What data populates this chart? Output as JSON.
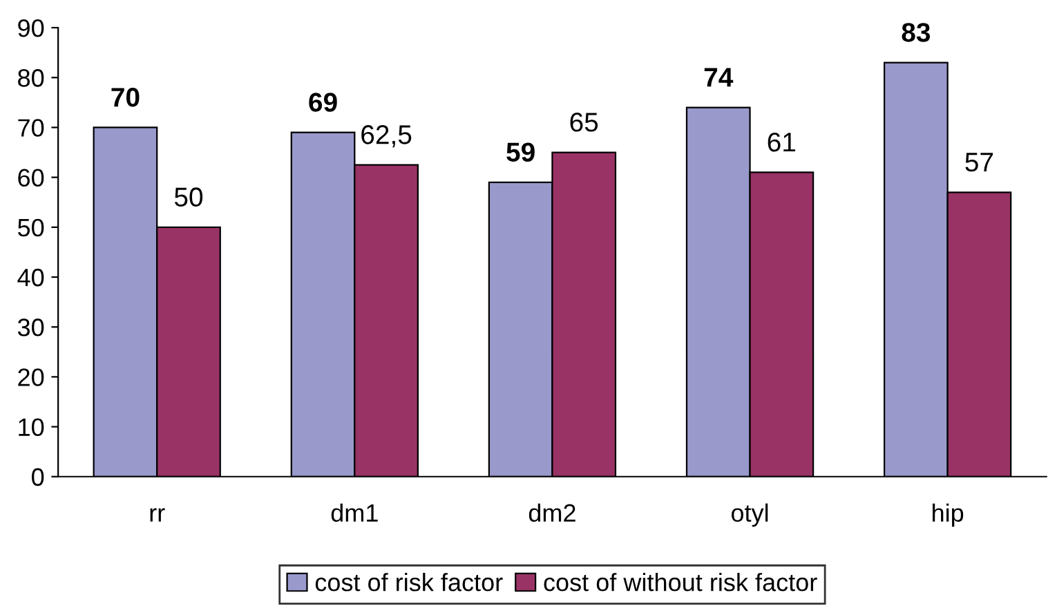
{
  "chart_data": {
    "type": "bar",
    "categories": [
      "rr",
      "dm1",
      "dm2",
      "otyl",
      "hip"
    ],
    "series": [
      {
        "name": "cost of risk factor",
        "color": "#9999cc",
        "values": [
          70,
          69,
          59,
          74,
          83
        ],
        "value_labels": [
          "70",
          "69",
          "59",
          "74",
          "83"
        ]
      },
      {
        "name": "cost of without risk factor",
        "color": "#993366",
        "values": [
          50,
          62.5,
          65,
          61,
          57
        ],
        "value_labels": [
          "50",
          "62,5",
          "65",
          "61",
          "57"
        ]
      }
    ],
    "ylim": [
      0,
      90
    ],
    "yticks": [
      0,
      10,
      20,
      30,
      40,
      50,
      60,
      70,
      80,
      90
    ],
    "grid": false,
    "legend": "bottom"
  }
}
